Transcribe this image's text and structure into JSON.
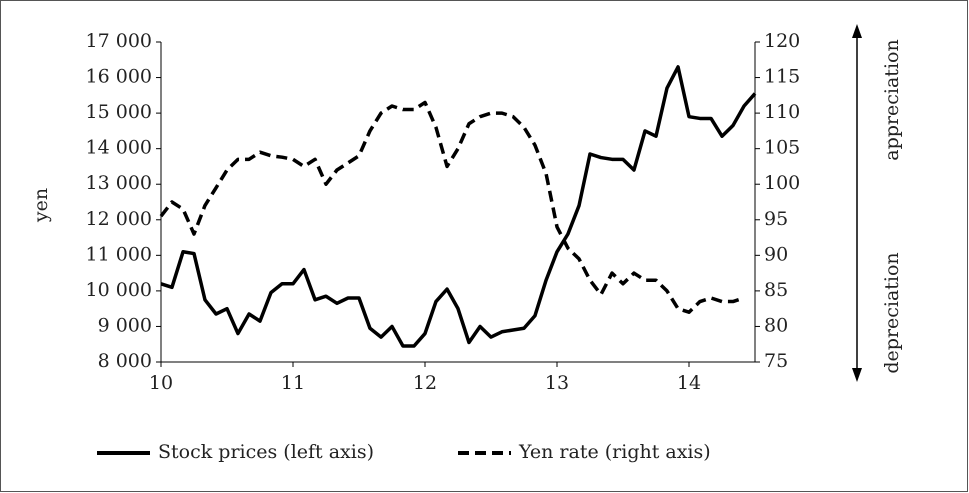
{
  "chart_data": {
    "type": "line",
    "y_label": "yen",
    "annotations": [
      "appreciation",
      "depreciation"
    ],
    "x": [
      10,
      10.083,
      10.167,
      10.25,
      10.333,
      10.417,
      10.5,
      10.583,
      10.667,
      10.75,
      10.833,
      10.917,
      11,
      11.083,
      11.167,
      11.25,
      11.333,
      11.417,
      11.5,
      11.583,
      11.667,
      11.75,
      11.833,
      11.917,
      12,
      12.083,
      12.167,
      12.25,
      12.333,
      12.417,
      12.5,
      12.583,
      12.667,
      12.75,
      12.833,
      12.917,
      13,
      13.083,
      13.167,
      13.25,
      13.333,
      13.417,
      13.5,
      13.583,
      13.667,
      13.75,
      13.833,
      13.917,
      14,
      14.083,
      14.167,
      14.25,
      14.333,
      14.417,
      14.5
    ],
    "series": [
      {
        "name": "Stock prices (left axis)",
        "color": "#000000",
        "dash": false,
        "axis": "y",
        "values": [
          10200,
          10100,
          11100,
          11050,
          9750,
          9350,
          9500,
          8800,
          9350,
          9150,
          9950,
          10200,
          10200,
          10600,
          9750,
          9850,
          9650,
          9800,
          9800,
          8950,
          8700,
          9000,
          8450,
          8450,
          8800,
          9700,
          10050,
          9500,
          8550,
          9000,
          8700,
          8850,
          8900,
          8950,
          9300,
          10300,
          11100,
          11600,
          12400,
          13850,
          13750,
          13700,
          13700,
          13400,
          14500,
          14350,
          15700,
          16300,
          14900,
          14850,
          14850,
          14350,
          14650,
          15200,
          15550
        ]
      },
      {
        "name": "Yen rate (right axis)",
        "color": "#000000",
        "dash": true,
        "axis": "y2",
        "values": [
          95.5,
          97.5,
          96.5,
          93,
          97,
          99.5,
          102,
          103.5,
          103.5,
          104.5,
          104,
          103.8,
          103.5,
          102.5,
          103.5,
          100,
          102,
          103,
          104,
          107.5,
          110,
          111,
          110.5,
          110.5,
          111.5,
          108,
          102.5,
          105,
          108.5,
          109.5,
          110,
          110,
          109.5,
          108,
          105.5,
          101.5,
          94,
          91,
          89.5,
          86.5,
          84.5,
          87.5,
          86,
          87.5,
          86.5,
          86.5,
          85,
          82.5,
          82,
          83.5,
          84,
          83.5,
          83.5,
          84,
          null
        ]
      }
    ],
    "xlim": [
      10,
      14.5
    ],
    "xticks": [
      10,
      11,
      12,
      13,
      14
    ],
    "ylim": [
      8000,
      17000
    ],
    "yticks": [
      {
        "value": 8000,
        "label": "8 000"
      },
      {
        "value": 9000,
        "label": "9 000"
      },
      {
        "value": 10000,
        "label": "10 000"
      },
      {
        "value": 11000,
        "label": "11 000"
      },
      {
        "value": 12000,
        "label": "12 000"
      },
      {
        "value": 13000,
        "label": "13 000"
      },
      {
        "value": 14000,
        "label": "14 000"
      },
      {
        "value": 15000,
        "label": "15 000"
      },
      {
        "value": 16000,
        "label": "16 000"
      },
      {
        "value": 17000,
        "label": "17 000"
      }
    ],
    "y2lim": [
      75,
      120
    ],
    "y2ticks": [
      75,
      80,
      85,
      90,
      95,
      100,
      105,
      110,
      115,
      120
    ],
    "grid": false,
    "legend": "bottom"
  }
}
